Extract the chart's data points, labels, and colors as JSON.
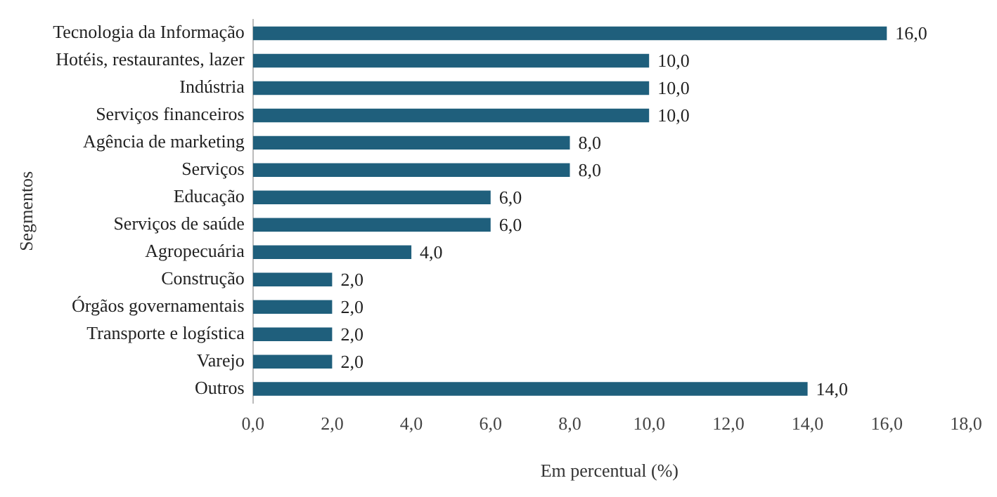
{
  "chart_data": {
    "type": "bar",
    "orientation": "horizontal",
    "xlabel": "Em percentual (%)",
    "ylabel": "Segmentos",
    "categories": [
      "Tecnologia da Informação",
      "Hotéis, restaurantes, lazer",
      "Indústria",
      "Serviços financeiros",
      "Agência de marketing",
      "Serviços",
      "Educação",
      "Serviços de saúde",
      "Agropecuária",
      "Construção",
      "Órgãos governamentais",
      "Transporte e logística",
      "Varejo",
      "Outros"
    ],
    "values": [
      16,
      10,
      10,
      10,
      8,
      8,
      6,
      6,
      4,
      2,
      2,
      2,
      2,
      14
    ],
    "value_labels": [
      "16,0",
      "10,0",
      "10,0",
      "10,0",
      "8,0",
      "8,0",
      "6,0",
      "6,0",
      "4,0",
      "2,0",
      "2,0",
      "2,0",
      "2,0",
      "14,0"
    ],
    "color": "#1f5f7c",
    "xlim": [
      0,
      18
    ],
    "xticks": [
      {
        "value": 0,
        "label": "0,0"
      },
      {
        "value": 2,
        "label": "2,0"
      },
      {
        "value": 4,
        "label": "4,0"
      },
      {
        "value": 6,
        "label": "6,0"
      },
      {
        "value": 8,
        "label": "8,0"
      },
      {
        "value": 10,
        "label": "10,0"
      },
      {
        "value": 12,
        "label": "12,0"
      },
      {
        "value": 14,
        "label": "14,0"
      },
      {
        "value": 16,
        "label": "16,0"
      },
      {
        "value": 18,
        "label": "18,0"
      }
    ],
    "grid": false,
    "legend": false
  }
}
